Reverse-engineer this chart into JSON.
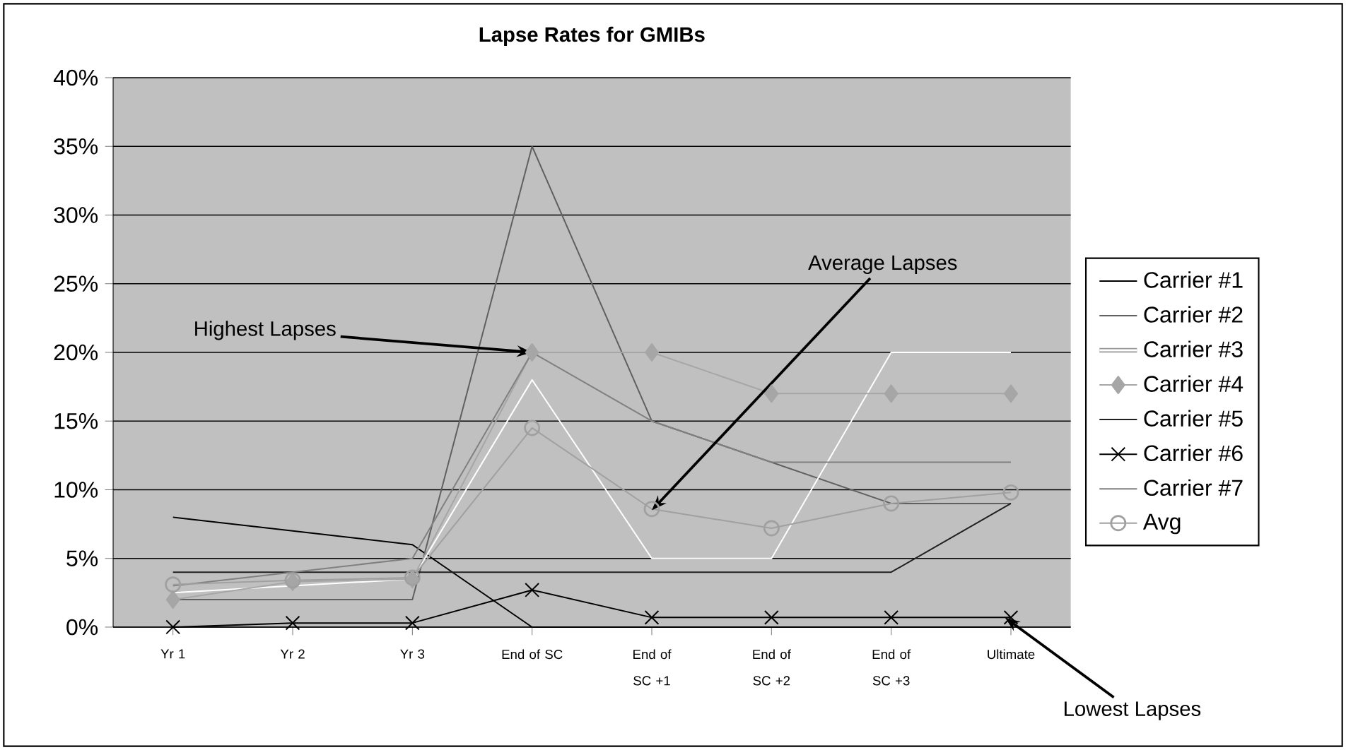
{
  "chart_data": {
    "type": "line",
    "title": "Lapse Rates for GMIBs",
    "categories": [
      "Yr 1",
      "Yr 2",
      "Yr 3",
      "End of SC",
      "End of SC +1",
      "End of SC +2",
      "End of SC +3",
      "Ultimate"
    ],
    "series": [
      {
        "name": "Carrier #1",
        "color": "#000000",
        "marker": "none",
        "values": [
          8,
          7,
          6,
          0,
          0,
          0,
          0,
          0
        ]
      },
      {
        "name": "Carrier #2",
        "color": "#606060",
        "marker": "none",
        "values": [
          2,
          2,
          2,
          35,
          15,
          12,
          9,
          9
        ]
      },
      {
        "name": "Carrier #3",
        "color": "#ffffff",
        "marker": "none",
        "values": [
          2.5,
          3,
          3.5,
          18,
          5,
          5,
          20,
          20
        ]
      },
      {
        "name": "Carrier #4",
        "color": "#a6a6a6",
        "marker": "diamond",
        "values": [
          2,
          3.3,
          3.5,
          20,
          20,
          17,
          17,
          17
        ]
      },
      {
        "name": "Carrier #5",
        "color": "#202020",
        "marker": "none",
        "values": [
          4,
          4,
          4,
          4,
          4,
          4,
          4,
          9
        ]
      },
      {
        "name": "Carrier #6",
        "color": "#000000",
        "marker": "cross",
        "values": [
          0,
          0.3,
          0.3,
          2.7,
          0.7,
          0.7,
          0.7,
          0.7
        ]
      },
      {
        "name": "Carrier #7",
        "color": "#808080",
        "marker": "none",
        "values": [
          3,
          4,
          5,
          20,
          15,
          12,
          12,
          12
        ]
      },
      {
        "name": "Avg",
        "color": "#a0a0a0",
        "marker": "circle",
        "values": [
          3.1,
          3.4,
          3.6,
          14.5,
          8.6,
          7.2,
          9,
          9.8
        ]
      }
    ],
    "ylim": [
      0,
      40
    ],
    "yticks": [
      {
        "value": 0,
        "label": "0%"
      },
      {
        "value": 5,
        "label": "5%"
      },
      {
        "value": 10,
        "label": "10%"
      },
      {
        "value": 15,
        "label": "15%"
      },
      {
        "value": 20,
        "label": "20%"
      },
      {
        "value": 25,
        "label": "25%"
      },
      {
        "value": 30,
        "label": "30%"
      },
      {
        "value": 35,
        "label": "35%"
      },
      {
        "value": 40,
        "label": "40%"
      }
    ],
    "grid": "y",
    "legend": "right",
    "annotations": [
      {
        "text": "Highest Lapses",
        "x": "End of SC",
        "y": 20
      },
      {
        "text": "Average Lapses",
        "x": "End of SC +1",
        "y": 8.5
      },
      {
        "text": "Lowest Lapses",
        "x": "Ultimate",
        "y": 0.7
      }
    ]
  }
}
